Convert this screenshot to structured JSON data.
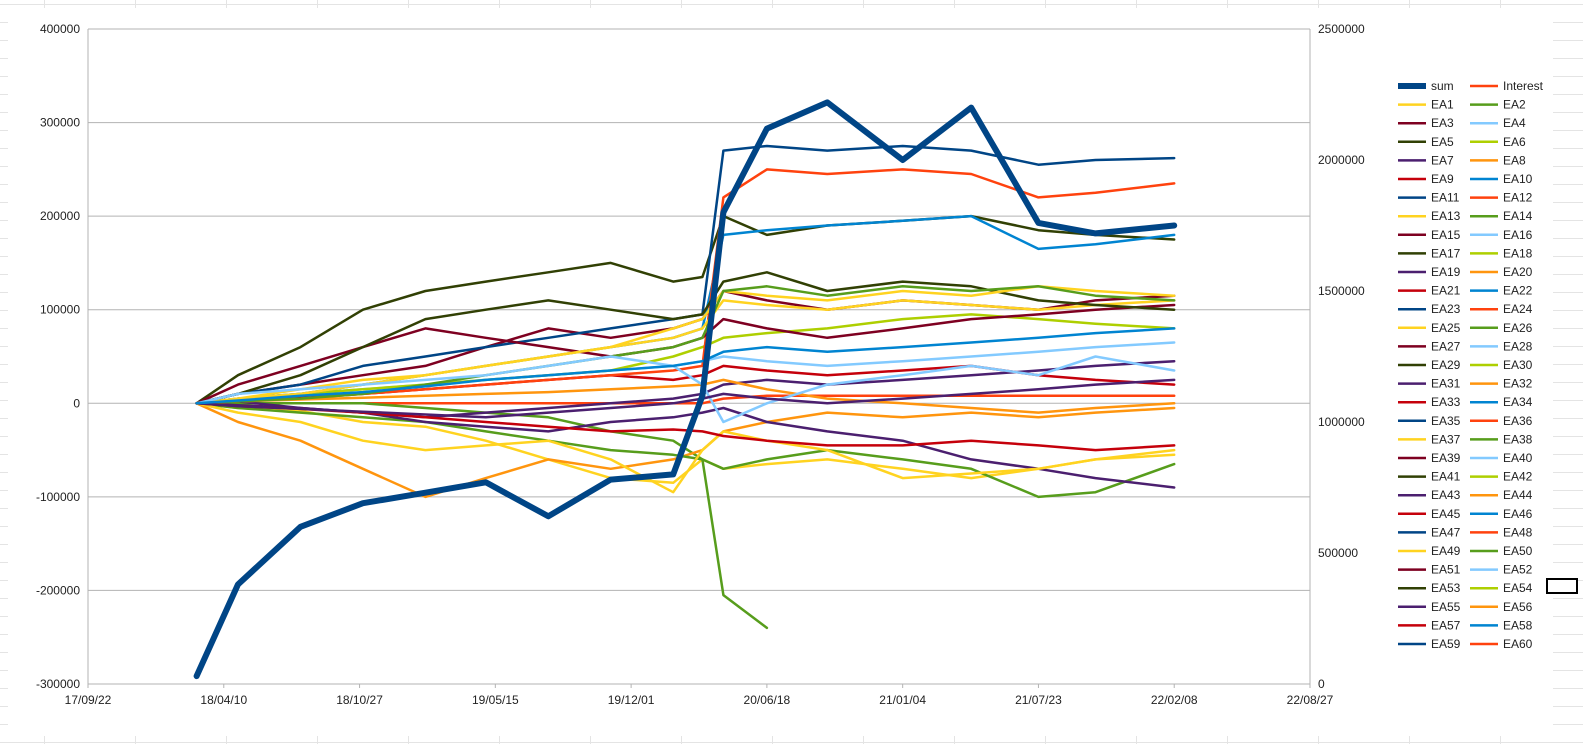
{
  "chart_data": {
    "type": "line",
    "title": "",
    "xlabel": "",
    "ylabel": "",
    "x_axis": {
      "type": "date",
      "range": [
        "17/09/22",
        "22/08/27"
      ],
      "tick_labels": [
        "17/09/22",
        "18/04/10",
        "18/10/27",
        "19/05/15",
        "19/12/01",
        "20/06/18",
        "21/01/04",
        "21/07/23",
        "22/02/08",
        "22/08/27"
      ]
    },
    "y_axis_left": {
      "range": [
        -300000,
        400000
      ],
      "tick_labels": [
        "400000",
        "300000",
        "200000",
        "100000",
        "0",
        "-100000",
        "-200000",
        "-300000"
      ]
    },
    "y_axis_right": {
      "range": [
        0,
        2500000
      ],
      "tick_labels": [
        "2500000",
        "2000000",
        "1500000",
        "1000000",
        "500000",
        "0"
      ]
    },
    "grid": true,
    "legend": {
      "position": "right",
      "columns": 2
    },
    "x_sample_dates": [
      "18/03/01",
      "18/05/01",
      "18/08/01",
      "18/11/01",
      "19/02/01",
      "19/05/01",
      "19/08/01",
      "19/11/01",
      "20/02/01",
      "20/03/15",
      "20/04/15",
      "20/06/18",
      "20/09/15",
      "21/01/04",
      "21/04/15",
      "21/07/23",
      "21/10/15",
      "22/02/08"
    ],
    "series": [
      {
        "name": "sum",
        "axis": "right",
        "color": "#004586",
        "width": 6,
        "values": [
          30000,
          380000,
          600000,
          690000,
          730000,
          770000,
          640000,
          780000,
          800000,
          1100000,
          1800000,
          2120000,
          2220000,
          2000000,
          2200000,
          1760000,
          1720000,
          1750000
        ]
      },
      {
        "name": "Interest",
        "axis": "left",
        "color": "#ff420e",
        "width": 2.5,
        "values": [
          0,
          0,
          0,
          0,
          0,
          0,
          0,
          0,
          0,
          0,
          5000,
          8000,
          8000,
          8000,
          8000,
          8000,
          8000,
          8000
        ]
      },
      {
        "name": "EA1",
        "axis": "left",
        "color": "#ffd320",
        "width": 2.5,
        "values": [
          0,
          -5000,
          -8000,
          -20000,
          -25000,
          -40000,
          -60000,
          -80000,
          -85000,
          -60000,
          -70000,
          -65000,
          -60000,
          -70000,
          -80000,
          -70000,
          -60000,
          -55000
        ]
      },
      {
        "name": "EA2",
        "axis": "left",
        "color": "#579d1c",
        "width": 2.5,
        "values": [
          0,
          0,
          0,
          0,
          -5000,
          -10000,
          -15000,
          -30000,
          -40000,
          -60000,
          -205000,
          -240000,
          null,
          null,
          null,
          null,
          null,
          null
        ]
      },
      {
        "name": "EA3",
        "axis": "left",
        "color": "#7e0021",
        "width": 2.5,
        "values": [
          0,
          10000,
          20000,
          30000,
          40000,
          60000,
          80000,
          70000,
          80000,
          90000,
          120000,
          110000,
          100000,
          110000,
          105000,
          100000,
          110000,
          115000
        ]
      },
      {
        "name": "EA4",
        "axis": "left",
        "color": "#83caff",
        "width": 2.5,
        "values": [
          0,
          5000,
          10000,
          15000,
          20000,
          25000,
          30000,
          35000,
          40000,
          45000,
          50000,
          45000,
          40000,
          45000,
          50000,
          55000,
          60000,
          65000
        ]
      },
      {
        "name": "EA5",
        "axis": "left",
        "color": "#314004",
        "width": 2.5,
        "values": [
          0,
          30000,
          60000,
          100000,
          120000,
          130000,
          140000,
          150000,
          130000,
          135000,
          200000,
          180000,
          190000,
          195000,
          200000,
          185000,
          180000,
          175000
        ]
      },
      {
        "name": "EA6",
        "axis": "left",
        "color": "#aecf00",
        "width": 2.5,
        "values": [
          0,
          5000,
          10000,
          15000,
          20000,
          25000,
          30000,
          35000,
          50000,
          60000,
          70000,
          75000,
          80000,
          90000,
          95000,
          90000,
          85000,
          80000
        ]
      },
      {
        "name": "EA7",
        "axis": "left",
        "color": "#4b1f6f",
        "width": 2.5,
        "values": [
          0,
          -2000,
          -5000,
          -10000,
          -15000,
          -10000,
          -5000,
          0,
          5000,
          10000,
          20000,
          25000,
          20000,
          25000,
          30000,
          35000,
          40000,
          45000
        ]
      },
      {
        "name": "EA8",
        "axis": "left",
        "color": "#ff950e",
        "width": 2.5,
        "values": [
          0,
          -20000,
          -40000,
          -70000,
          -100000,
          -80000,
          -60000,
          -70000,
          -60000,
          -50000,
          -30000,
          -20000,
          -10000,
          -15000,
          -10000,
          -15000,
          -10000,
          -5000
        ]
      },
      {
        "name": "EA9",
        "axis": "left",
        "color": "#c5000b",
        "width": 2.5,
        "values": [
          0,
          3000,
          6000,
          10000,
          15000,
          20000,
          25000,
          30000,
          25000,
          30000,
          40000,
          35000,
          30000,
          35000,
          40000,
          30000,
          25000,
          20000
        ]
      },
      {
        "name": "EA10",
        "axis": "left",
        "color": "#0084d1",
        "width": 2.5,
        "values": [
          0,
          5000,
          10000,
          20000,
          30000,
          40000,
          50000,
          60000,
          70000,
          80000,
          180000,
          185000,
          190000,
          195000,
          200000,
          165000,
          170000,
          180000
        ]
      },
      {
        "name": "EA11",
        "axis": "left",
        "color": "#004586",
        "width": 2.5,
        "values": [
          0,
          10000,
          20000,
          40000,
          50000,
          60000,
          70000,
          80000,
          90000,
          95000,
          270000,
          275000,
          270000,
          275000,
          270000,
          255000,
          260000,
          262000
        ]
      },
      {
        "name": "EA12",
        "axis": "left",
        "color": "#ff420e",
        "width": 2.5,
        "values": [
          0,
          2000,
          5000,
          10000,
          15000,
          20000,
          25000,
          30000,
          35000,
          40000,
          220000,
          250000,
          245000,
          250000,
          245000,
          220000,
          225000,
          235000
        ]
      },
      {
        "name": "EA13",
        "axis": "left",
        "color": "#ffd320",
        "width": 2.5,
        "values": [
          0,
          5000,
          15000,
          25000,
          30000,
          40000,
          50000,
          60000,
          70000,
          80000,
          110000,
          105000,
          100000,
          110000,
          105000,
          100000,
          105000,
          110000
        ]
      },
      {
        "name": "EA14",
        "axis": "left",
        "color": "#579d1c",
        "width": 2.5,
        "values": [
          0,
          -5000,
          -10000,
          -15000,
          -20000,
          -30000,
          -40000,
          -50000,
          -55000,
          -60000,
          -70000,
          -60000,
          -50000,
          -60000,
          -70000,
          -100000,
          -95000,
          -65000
        ]
      },
      {
        "name": "EA15",
        "axis": "left",
        "color": "#7e0021",
        "width": 2.5,
        "values": [
          0,
          20000,
          40000,
          60000,
          80000,
          70000,
          60000,
          50000,
          60000,
          70000,
          90000,
          80000,
          70000,
          80000,
          90000,
          95000,
          100000,
          105000
        ]
      },
      {
        "name": "EA17",
        "axis": "left",
        "color": "#314004",
        "width": 2.5,
        "values": [
          0,
          10000,
          30000,
          60000,
          90000,
          100000,
          110000,
          100000,
          90000,
          95000,
          130000,
          140000,
          120000,
          130000,
          125000,
          110000,
          105000,
          100000
        ]
      },
      {
        "name": "EA19",
        "axis": "left",
        "color": "#4b1f6f",
        "width": 2.5,
        "values": [
          0,
          2000,
          -5000,
          -10000,
          -20000,
          -25000,
          -30000,
          -20000,
          -15000,
          -10000,
          -5000,
          -20000,
          -30000,
          -40000,
          -60000,
          -70000,
          -80000,
          -90000
        ]
      },
      {
        "name": "EA20",
        "axis": "left",
        "color": "#ff950e",
        "width": 2.5,
        "values": [
          0,
          2000,
          4000,
          6000,
          8000,
          10000,
          12000,
          15000,
          18000,
          20000,
          25000,
          15000,
          5000,
          0,
          -5000,
          -10000,
          -5000,
          0
        ]
      },
      {
        "name": "EA25",
        "axis": "left",
        "color": "#ffd320",
        "width": 2.5,
        "values": [
          0,
          5000,
          10000,
          20000,
          30000,
          40000,
          50000,
          60000,
          80000,
          90000,
          120000,
          115000,
          110000,
          120000,
          115000,
          125000,
          120000,
          115000
        ]
      },
      {
        "name": "EA26",
        "axis": "left",
        "color": "#579d1c",
        "width": 2.5,
        "values": [
          0,
          2000,
          5000,
          10000,
          20000,
          30000,
          40000,
          50000,
          60000,
          70000,
          120000,
          125000,
          115000,
          125000,
          120000,
          125000,
          115000,
          110000
        ]
      },
      {
        "name": "EA28",
        "axis": "left",
        "color": "#83caff",
        "width": 2.5,
        "values": [
          0,
          10000,
          15000,
          20000,
          25000,
          30000,
          40000,
          50000,
          40000,
          20000,
          -20000,
          0,
          20000,
          30000,
          40000,
          30000,
          50000,
          35000
        ]
      },
      {
        "name": "EA37",
        "axis": "left",
        "color": "#ffd320",
        "width": 2.5,
        "values": [
          0,
          -10000,
          -20000,
          -40000,
          -50000,
          -45000,
          -40000,
          -60000,
          -95000,
          -50000,
          -30000,
          -40000,
          -50000,
          -80000,
          -75000,
          -70000,
          -60000,
          -50000
        ]
      },
      {
        "name": "EA45",
        "axis": "left",
        "color": "#c5000b",
        "width": 2.5,
        "values": [
          0,
          -3000,
          -6000,
          -10000,
          -15000,
          -20000,
          -25000,
          -30000,
          -28000,
          -30000,
          -35000,
          -40000,
          -45000,
          -45000,
          -40000,
          -45000,
          -50000,
          -45000
        ]
      },
      {
        "name": "EA55",
        "axis": "left",
        "color": "#4b1f6f",
        "width": 2.5,
        "values": [
          0,
          -3000,
          -6000,
          -9000,
          -12000,
          -15000,
          -10000,
          -5000,
          0,
          5000,
          10000,
          5000,
          0,
          5000,
          10000,
          15000,
          20000,
          25000
        ]
      },
      {
        "name": "EA58",
        "axis": "left",
        "color": "#0084d1",
        "width": 2.5,
        "values": [
          0,
          3000,
          8000,
          12000,
          18000,
          25000,
          30000,
          35000,
          40000,
          45000,
          55000,
          60000,
          55000,
          60000,
          65000,
          70000,
          75000,
          80000
        ]
      }
    ]
  },
  "legend_items": [
    {
      "name": "sum",
      "color": "#004586",
      "thick": true
    },
    {
      "name": "Interest",
      "color": "#ff420e"
    },
    {
      "name": "EA1",
      "color": "#ffd320"
    },
    {
      "name": "EA2",
      "color": "#579d1c"
    },
    {
      "name": "EA3",
      "color": "#7e0021"
    },
    {
      "name": "EA4",
      "color": "#83caff"
    },
    {
      "name": "EA5",
      "color": "#314004"
    },
    {
      "name": "EA6",
      "color": "#aecf00"
    },
    {
      "name": "EA7",
      "color": "#4b1f6f"
    },
    {
      "name": "EA8",
      "color": "#ff950e"
    },
    {
      "name": "EA9",
      "color": "#c5000b"
    },
    {
      "name": "EA10",
      "color": "#0084d1"
    },
    {
      "name": "EA11",
      "color": "#004586"
    },
    {
      "name": "EA12",
      "color": "#ff420e"
    },
    {
      "name": "EA13",
      "color": "#ffd320"
    },
    {
      "name": "EA14",
      "color": "#579d1c"
    },
    {
      "name": "EA15",
      "color": "#7e0021"
    },
    {
      "name": "EA16",
      "color": "#83caff"
    },
    {
      "name": "EA17",
      "color": "#314004"
    },
    {
      "name": "EA18",
      "color": "#aecf00"
    },
    {
      "name": "EA19",
      "color": "#4b1f6f"
    },
    {
      "name": "EA20",
      "color": "#ff950e"
    },
    {
      "name": "EA21",
      "color": "#c5000b"
    },
    {
      "name": "EA22",
      "color": "#0084d1"
    },
    {
      "name": "EA23",
      "color": "#004586"
    },
    {
      "name": "EA24",
      "color": "#ff420e"
    },
    {
      "name": "EA25",
      "color": "#ffd320"
    },
    {
      "name": "EA26",
      "color": "#579d1c"
    },
    {
      "name": "EA27",
      "color": "#7e0021"
    },
    {
      "name": "EA28",
      "color": "#83caff"
    },
    {
      "name": "EA29",
      "color": "#314004"
    },
    {
      "name": "EA30",
      "color": "#aecf00"
    },
    {
      "name": "EA31",
      "color": "#4b1f6f"
    },
    {
      "name": "EA32",
      "color": "#ff950e"
    },
    {
      "name": "EA33",
      "color": "#c5000b"
    },
    {
      "name": "EA34",
      "color": "#0084d1"
    },
    {
      "name": "EA35",
      "color": "#004586"
    },
    {
      "name": "EA36",
      "color": "#ff420e"
    },
    {
      "name": "EA37",
      "color": "#ffd320"
    },
    {
      "name": "EA38",
      "color": "#579d1c"
    },
    {
      "name": "EA39",
      "color": "#7e0021"
    },
    {
      "name": "EA40",
      "color": "#83caff"
    },
    {
      "name": "EA41",
      "color": "#314004"
    },
    {
      "name": "EA42",
      "color": "#aecf00"
    },
    {
      "name": "EA43",
      "color": "#4b1f6f"
    },
    {
      "name": "EA44",
      "color": "#ff950e"
    },
    {
      "name": "EA45",
      "color": "#c5000b"
    },
    {
      "name": "EA46",
      "color": "#0084d1"
    },
    {
      "name": "EA47",
      "color": "#004586"
    },
    {
      "name": "EA48",
      "color": "#ff420e"
    },
    {
      "name": "EA49",
      "color": "#ffd320"
    },
    {
      "name": "EA50",
      "color": "#579d1c"
    },
    {
      "name": "EA51",
      "color": "#7e0021"
    },
    {
      "name": "EA52",
      "color": "#83caff"
    },
    {
      "name": "EA53",
      "color": "#314004"
    },
    {
      "name": "EA54",
      "color": "#aecf00"
    },
    {
      "name": "EA55",
      "color": "#4b1f6f"
    },
    {
      "name": "EA56",
      "color": "#ff950e"
    },
    {
      "name": "EA57",
      "color": "#c5000b"
    },
    {
      "name": "EA58",
      "color": "#0084d1"
    },
    {
      "name": "EA59",
      "color": "#004586"
    },
    {
      "name": "EA60",
      "color": "#ff420e"
    }
  ]
}
